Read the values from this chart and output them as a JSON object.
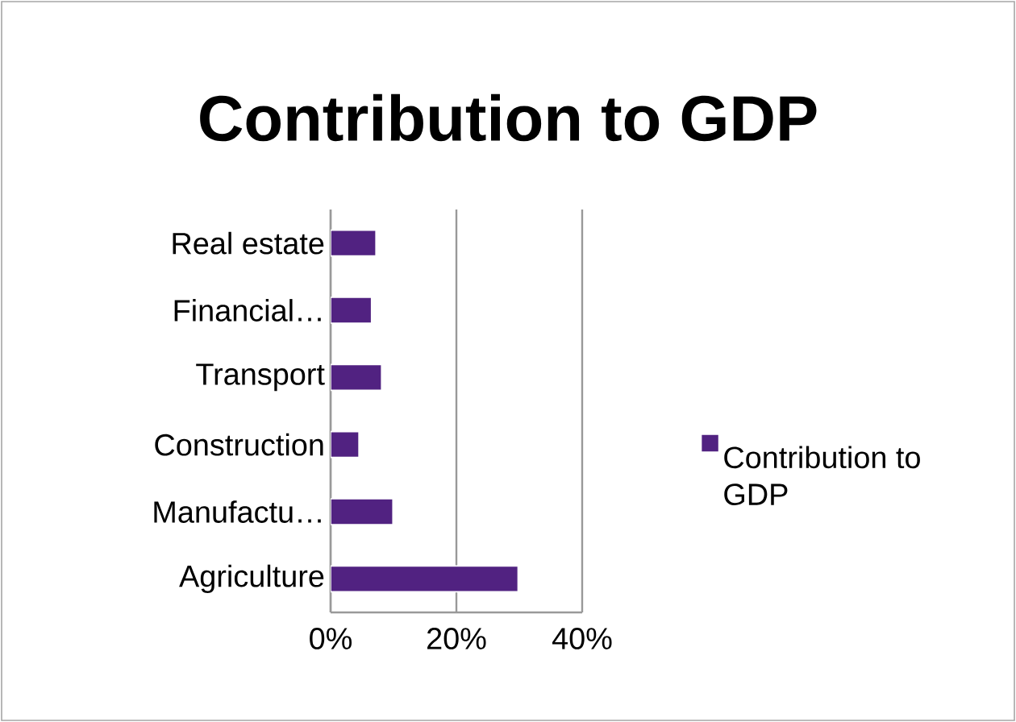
{
  "chart_data": {
    "type": "bar",
    "orientation": "horizontal",
    "title": "Contribution to GDP",
    "categories": [
      "Real estate",
      "Financial…",
      "Transport",
      "Construction",
      "Manufactu…",
      "Agriculture"
    ],
    "series": [
      {
        "name": "Contribution to GDP",
        "color": "#512281",
        "values": [
          7.2,
          6.5,
          8.1,
          4.5,
          9.9,
          29.8
        ]
      }
    ],
    "xlim": [
      0,
      40
    ],
    "xticks": [
      {
        "value": 0,
        "label": "0%"
      },
      {
        "value": 20,
        "label": "20%"
      },
      {
        "value": 40,
        "label": "40%"
      }
    ],
    "grid": "x",
    "legend": "right"
  }
}
